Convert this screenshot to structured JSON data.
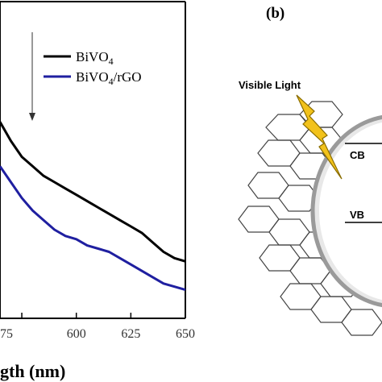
{
  "chart_data": {
    "type": "line",
    "xlabel": "gth (nm)",
    "x_ticks": [
      "75",
      "600",
      "625",
      "650"
    ],
    "xlim": [
      565,
      650
    ],
    "ylim": [
      0,
      1
    ],
    "arrow": "down",
    "series": [
      {
        "name": "BiVO4",
        "color": "#000000",
        "x": [
          565,
          570,
          575,
          580,
          585,
          590,
          595,
          600,
          605,
          610,
          615,
          620,
          625,
          630,
          635,
          640,
          645,
          650
        ],
        "y": [
          0.62,
          0.56,
          0.51,
          0.48,
          0.45,
          0.43,
          0.41,
          0.39,
          0.37,
          0.35,
          0.33,
          0.31,
          0.29,
          0.27,
          0.24,
          0.21,
          0.19,
          0.18
        ]
      },
      {
        "name": "BiVO4/rGO",
        "color": "#1f1fa0",
        "x": [
          565,
          570,
          575,
          580,
          585,
          590,
          595,
          600,
          605,
          610,
          615,
          620,
          625,
          630,
          635,
          640,
          645,
          650
        ],
        "y": [
          0.48,
          0.43,
          0.38,
          0.34,
          0.31,
          0.28,
          0.26,
          0.25,
          0.23,
          0.22,
          0.21,
          0.19,
          0.17,
          0.15,
          0.13,
          0.11,
          0.1,
          0.09
        ]
      }
    ],
    "legend": {
      "entries": [
        {
          "main": "BiVO",
          "sub": "4",
          "tail": ""
        },
        {
          "main": "BiVO",
          "sub": "4",
          "tail": "/rGO"
        }
      ]
    }
  },
  "diagram": {
    "panel_label": "(b)",
    "light_label": "Visible Light",
    "cb_label": "CB",
    "vb_label": "VB"
  }
}
